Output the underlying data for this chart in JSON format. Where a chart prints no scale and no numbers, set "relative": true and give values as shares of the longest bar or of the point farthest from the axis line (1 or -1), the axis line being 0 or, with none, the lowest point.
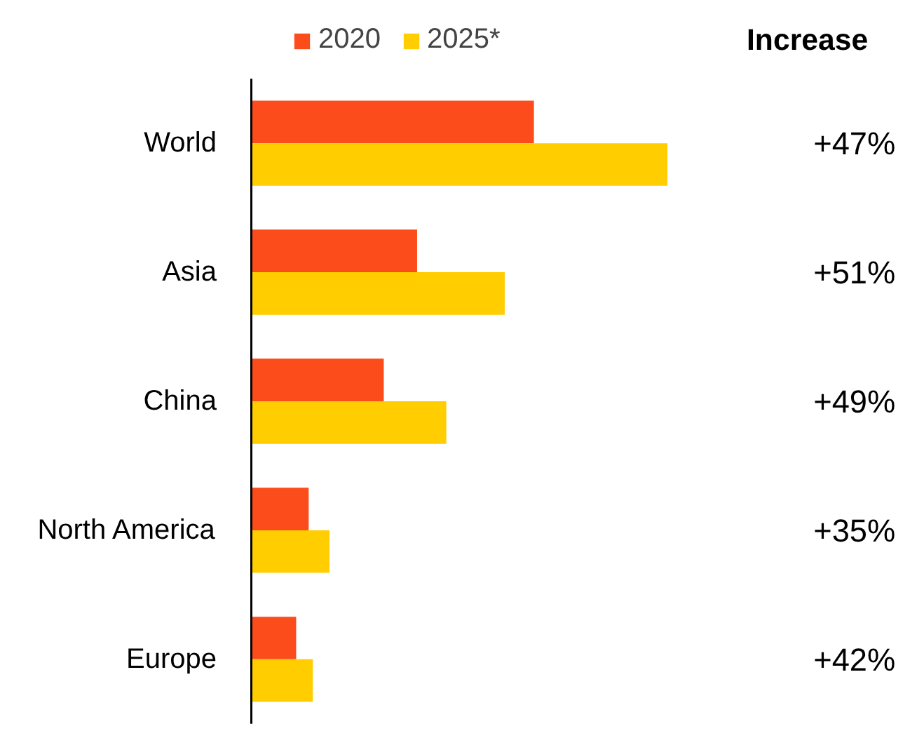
{
  "chart_data": {
    "type": "bar",
    "orientation": "horizontal",
    "relative": true,
    "legend": "top",
    "grid": false,
    "categories": [
      "World",
      "Asia",
      "China",
      "North America",
      "Europe"
    ],
    "series": [
      {
        "name": "2020",
        "color": "#fc4c1b",
        "values": [
          0.68,
          0.4,
          0.32,
          0.14,
          0.11
        ]
      },
      {
        "name": "2025*",
        "color": "#ffcd00",
        "values": [
          1,
          0.61,
          0.47,
          0.19,
          0.15
        ]
      }
    ],
    "annotations": [
      "Increase",
      "+47%",
      "+51%",
      "+49%",
      "+35%",
      "+42%"
    ]
  }
}
